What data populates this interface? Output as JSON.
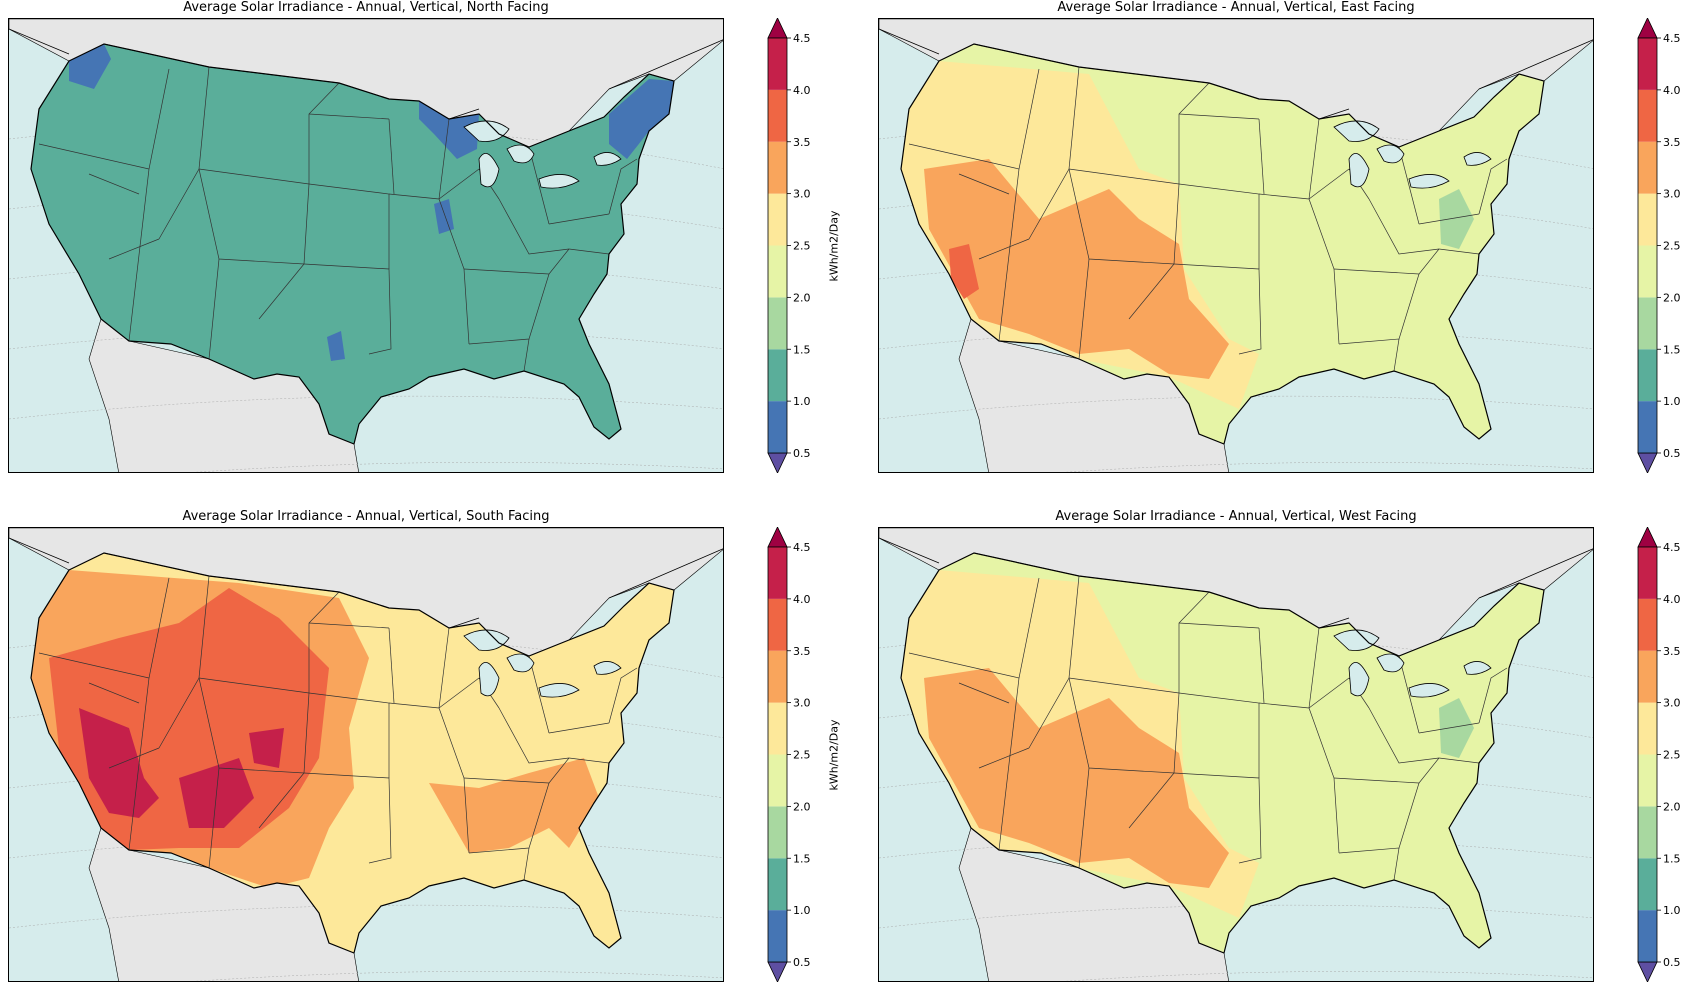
{
  "panels": [
    {
      "id": "north",
      "title": "Average Solar Irradiance - Annual, Vertical, North Facing",
      "base_class": 1,
      "patches": [
        {
          "shape": "pnw",
          "class": 0
        },
        {
          "shape": "greatlakes",
          "class": 0
        },
        {
          "shape": "newengland",
          "class": 0
        },
        {
          "shape": "illinois",
          "class": 0
        },
        {
          "shape": "texasdot",
          "class": 0
        }
      ]
    },
    {
      "id": "east",
      "title": "Average Solar Irradiance - Annual, Vertical, East Facing",
      "base_class": 3,
      "patches": [
        {
          "shape": "westband",
          "class": 4
        },
        {
          "shape": "southwest",
          "class": 5
        },
        {
          "shape": "socal",
          "class": 6
        },
        {
          "shape": "appalachia",
          "class": 2
        }
      ]
    },
    {
      "id": "south",
      "title": "Average Solar Irradiance - Annual, Vertical, South Facing",
      "base_class": 4,
      "patches": [
        {
          "shape": "west_big",
          "class": 5
        },
        {
          "shape": "rockies",
          "class": 6
        },
        {
          "shape": "mojave",
          "class": 7
        },
        {
          "shape": "southeast",
          "class": 5
        }
      ]
    },
    {
      "id": "west",
      "title": "Average Solar Irradiance - Annual, Vertical, West Facing",
      "base_class": 3,
      "patches": [
        {
          "shape": "westband",
          "class": 4
        },
        {
          "shape": "southwest",
          "class": 5
        },
        {
          "shape": "appalachia",
          "class": 2
        }
      ]
    }
  ],
  "colorbar": {
    "label": "kWh/m2/Day",
    "ticks": [
      "0.5",
      "1.0",
      "1.5",
      "2.0",
      "2.5",
      "3.0",
      "3.5",
      "4.0",
      "4.5"
    ],
    "colors": [
      "#4575b4",
      "#5aae9a",
      "#a8d8a0",
      "#e6f4a6",
      "#fde89a",
      "#f9a55c",
      "#ef6644",
      "#c5204a"
    ],
    "under_color": "#5e4fa2",
    "over_color": "#9e0142"
  },
  "map_colors": {
    "ocean": "#d6ecec",
    "land_other": "#e6e6e6"
  }
}
